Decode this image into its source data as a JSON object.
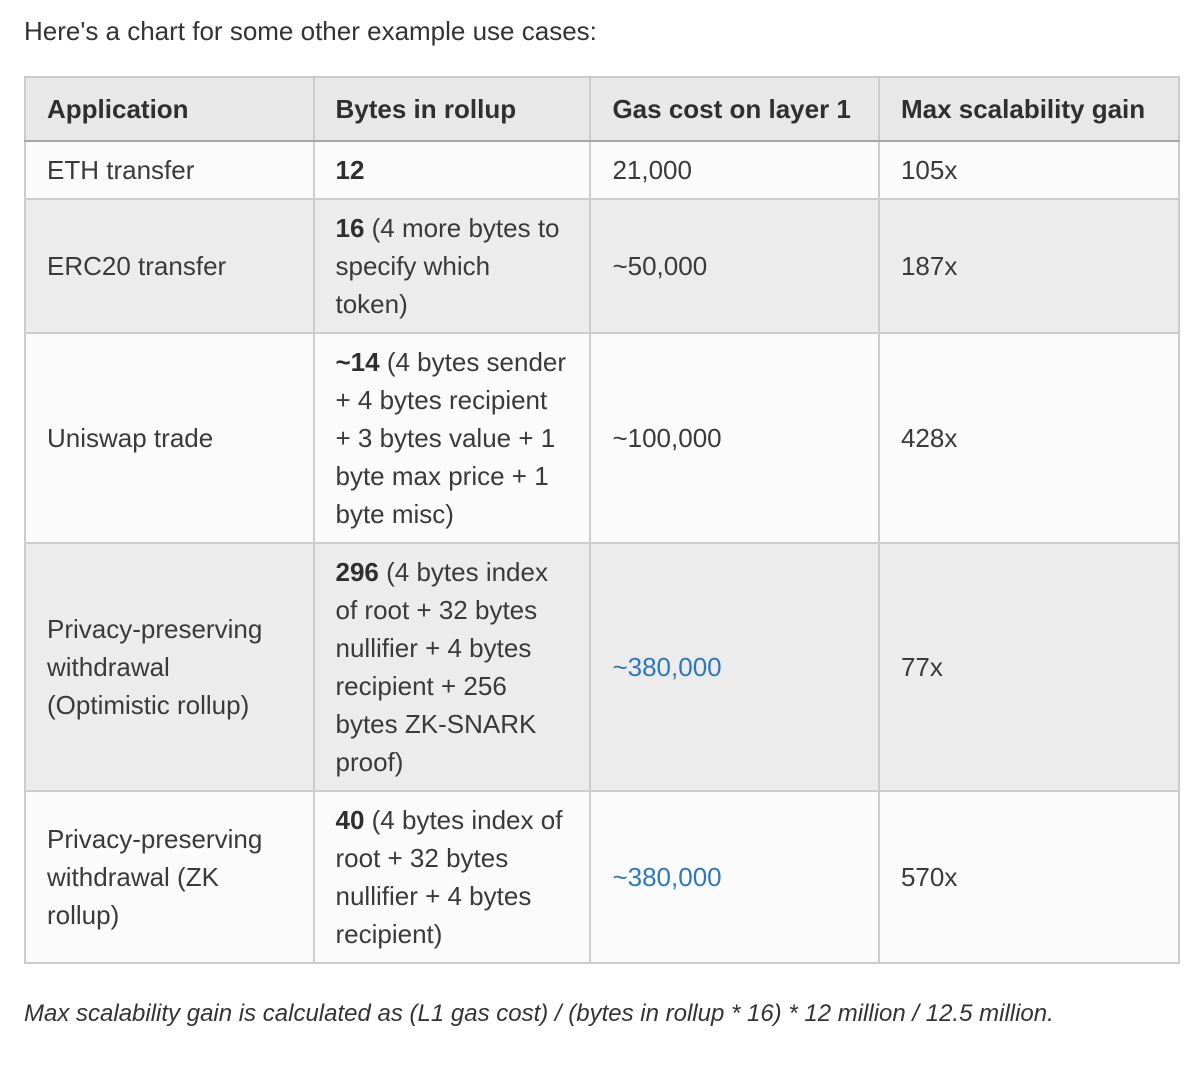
{
  "intro_text": "Here's a chart for some other example use cases:",
  "table": {
    "headers": [
      "Application",
      "Bytes in rollup",
      "Gas cost on layer 1",
      "Max scalability gain"
    ],
    "rows": [
      {
        "application": "ETH transfer",
        "bytes_value": "12",
        "bytes_detail": "",
        "gas_cost": "21,000",
        "gas_is_link": false,
        "max_gain": "105x"
      },
      {
        "application": "ERC20 transfer",
        "bytes_value": "16",
        "bytes_detail": " (4 more bytes to specify which token)",
        "gas_cost": "~50,000",
        "gas_is_link": false,
        "max_gain": "187x"
      },
      {
        "application": "Uniswap trade",
        "bytes_value": "~14",
        "bytes_detail": " (4 bytes sender + 4 bytes recipient + 3 bytes value + 1 byte max price + 1 byte misc)",
        "gas_cost": "~100,000",
        "gas_is_link": false,
        "max_gain": "428x"
      },
      {
        "application": "Privacy-preserving withdrawal (Optimistic rollup)",
        "bytes_value": "296",
        "bytes_detail": " (4 bytes index of root + 32 bytes nullifier + 4 bytes recipient + 256 bytes ZK-SNARK proof)",
        "gas_cost": "~380,000",
        "gas_is_link": true,
        "max_gain": "77x"
      },
      {
        "application": "Privacy-preserving withdrawal (ZK rollup)",
        "bytes_value": "40",
        "bytes_detail": " (4 bytes index of root + 32 bytes nullifier + 4 bytes recipient)",
        "gas_cost": "~380,000",
        "gas_is_link": true,
        "max_gain": "570x"
      }
    ]
  },
  "footnote": "Max scalability gain is calculated as (L1 gas cost) / (bytes in rollup * 16) * 12 million / 12.5 million.",
  "colors": {
    "link_blue": "#2d78bd",
    "header_bg": "#e8e8e8",
    "row_odd_bg": "#fbfbfb",
    "row_even_bg": "#ececec",
    "border": "#cccccc",
    "header_border_bottom": "#a6a6a6",
    "text": "#333333"
  }
}
